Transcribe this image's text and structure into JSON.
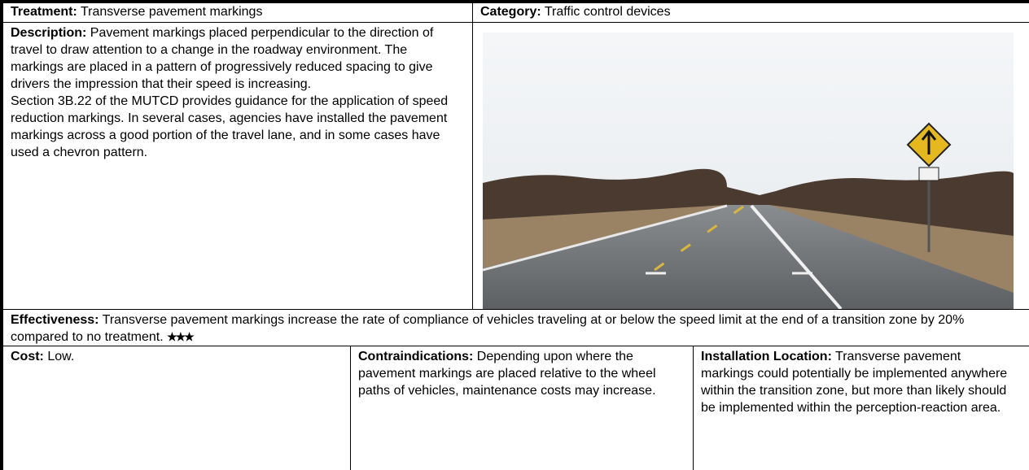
{
  "header": {
    "treatment_label": "Treatment:",
    "treatment": "Transverse pavement markings",
    "category_label": "Category:",
    "category": "Traffic control devices"
  },
  "description": {
    "label": "Description:",
    "paragraphs": [
      "Pavement markings placed perpendicular to the direction of travel to draw attention to a change in the roadway environment. The markings are placed in a pattern of progressively reduced spacing to give drivers the impression that their speed is increasing.",
      "Section 3B.22 of the MUTCD provides guidance for the application of speed reduction markings. In several cases, agencies have installed the pavement markings across a good portion of the travel lane, and in some cases have used a chevron pattern."
    ]
  },
  "effectiveness": {
    "label": "Effectiveness:",
    "text": "Transverse pavement markings increase the rate of compliance of vehicles traveling at or below the speed limit at the end of a transition zone by 20% compared to no treatment.",
    "rating": "★★★"
  },
  "cost": {
    "label": "Cost:",
    "text": "Low."
  },
  "contraindications": {
    "label": "Contraindications:",
    "text": "Depending upon where the pavement markings are placed relative to the wheel paths of vehicles, maintenance costs may increase."
  },
  "installation_location": {
    "label": "Installation Location:",
    "text": "Transverse pavement markings could potentially be implemented anywhere within the transition zone, but more than likely should be implemented within the perception-reaction area."
  }
}
